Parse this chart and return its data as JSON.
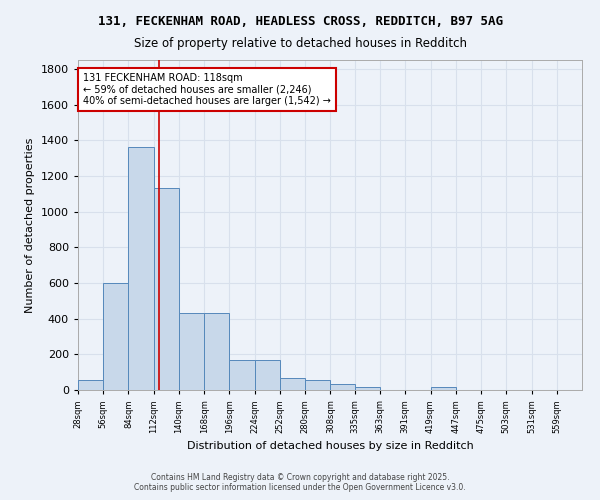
{
  "title_line1": "131, FECKENHAM ROAD, HEADLESS CROSS, REDDITCH, B97 5AG",
  "title_line2": "Size of property relative to detached houses in Redditch",
  "xlabel": "Distribution of detached houses by size in Redditch",
  "ylabel": "Number of detached properties",
  "bar_values": [
    55,
    600,
    1360,
    1130,
    430,
    430,
    170,
    170,
    65,
    55,
    35,
    15,
    0,
    0,
    15,
    0,
    0,
    0,
    0,
    0
  ],
  "bin_edges": [
    28,
    56,
    84,
    112,
    140,
    168,
    196,
    224,
    252,
    280,
    308,
    335,
    363,
    391,
    419,
    447,
    475,
    503,
    531,
    559,
    587
  ],
  "bar_color": "#c8d8ea",
  "bar_edge_color": "#5588bb",
  "property_size": 118,
  "annotation_text": "131 FECKENHAM ROAD: 118sqm\n← 59% of detached houses are smaller (2,246)\n40% of semi-detached houses are larger (1,542) →",
  "annotation_box_color": "#ffffff",
  "annotation_box_edge": "#cc0000",
  "vline_color": "#cc0000",
  "ylim": [
    0,
    1850
  ],
  "yticks": [
    0,
    200,
    400,
    600,
    800,
    1000,
    1200,
    1400,
    1600,
    1800
  ],
  "background_color": "#edf2f9",
  "grid_color": "#d8e0ec",
  "footer_line1": "Contains HM Land Registry data © Crown copyright and database right 2025.",
  "footer_line2": "Contains public sector information licensed under the Open Government Licence v3.0."
}
